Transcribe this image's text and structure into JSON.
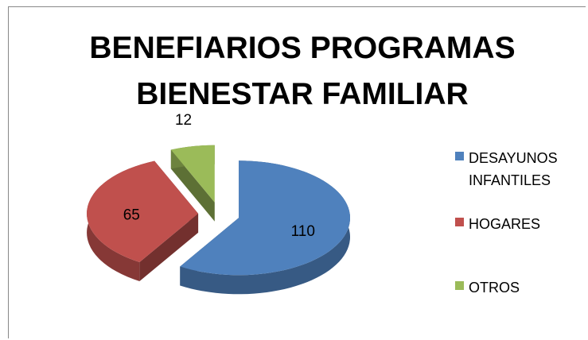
{
  "chart_data": {
    "type": "pie",
    "title": "BENEFIARIOS PROGRAMAS BIENESTAR FAMILIAR",
    "categories": [
      "DESAYUNOS INFANTILES",
      "HOGARES",
      "OTROS"
    ],
    "values": [
      110,
      65,
      12
    ],
    "colors": [
      "#4f81bd",
      "#c0504d",
      "#9bbb59"
    ],
    "legend": "right"
  }
}
